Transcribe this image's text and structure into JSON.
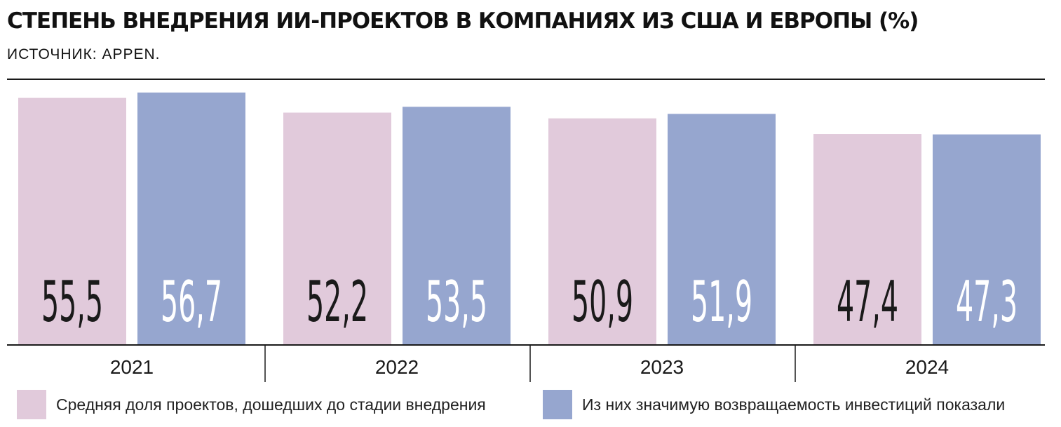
{
  "header": {
    "title": "СТЕПЕНЬ ВНЕДРЕНИЯ ИИ-ПРОЕКТОВ В КОМПАНИЯХ ИЗ США И ЕВРОПЫ (%)",
    "subtitle": "ИСТОЧНИК: APPEN."
  },
  "colors": {
    "series1": "#e1cadb",
    "series2": "#96a6cf",
    "label_on_series1": "#1a1a1a",
    "label_on_series2": "#ffffff"
  },
  "chart_data": {
    "type": "bar",
    "title": "СТЕПЕНЬ ВНЕДРЕНИЯ ИИ-ПРОЕКТОВ В КОМПАНИЯХ ИЗ США И ЕВРОПЫ (%)",
    "categories": [
      "2021",
      "2022",
      "2023",
      "2024"
    ],
    "series": [
      {
        "name": "Средняя доля проектов, дошедших до стадии внедрения",
        "values": [
          55.5,
          52.2,
          50.9,
          47.4
        ],
        "labels": [
          "55,5",
          "52,2",
          "50,9",
          "47,4"
        ]
      },
      {
        "name": "Из них значимую возвращаемость инвестиций показали",
        "values": [
          56.7,
          53.5,
          51.9,
          47.3
        ],
        "labels": [
          "56,7",
          "53,5",
          "51,9",
          "47,3"
        ]
      }
    ],
    "xlabel": "",
    "ylabel": "",
    "ylim": [
      0,
      56.7
    ],
    "grid": false,
    "legend": "bottom"
  },
  "legend": {
    "items": [
      {
        "label": "Средняя доля проектов, дошедших до стадии внедрения"
      },
      {
        "label": "Из них значимую возвращаемость инвестиций показали"
      }
    ]
  }
}
